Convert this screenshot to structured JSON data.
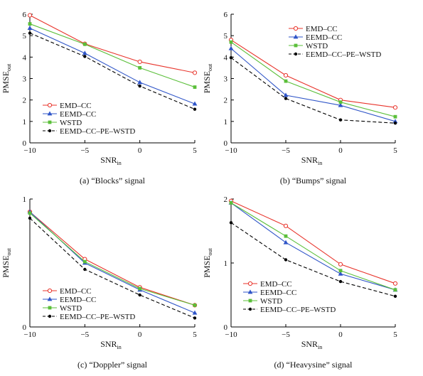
{
  "chart_data": [
    {
      "type": "line",
      "caption": "(a) “Blocks” signal",
      "xlabel": "SNR",
      "xlabel_sub": "in",
      "ylabel": "PMSE",
      "ylabel_sub": "out",
      "x": [
        -10,
        -5,
        0,
        5
      ],
      "xticks": [
        -10,
        -5,
        0,
        5
      ],
      "xtick_labels": [
        "−10",
        "−5",
        "0",
        "5"
      ],
      "ylim": [
        0,
        6
      ],
      "yticks": [
        0,
        1,
        2,
        3,
        4,
        5,
        6
      ],
      "ytick_labels": [
        "0",
        "1",
        "2",
        "3",
        "4",
        "5",
        "6"
      ],
      "legend_position": "bottom-left",
      "series": [
        {
          "name": "EMD–CC",
          "values": [
            5.95,
            4.62,
            3.78,
            3.27
          ]
        },
        {
          "name": "EEMD–CC",
          "values": [
            5.35,
            4.18,
            2.82,
            1.82
          ]
        },
        {
          "name": "WSTD",
          "values": [
            5.55,
            4.6,
            3.5,
            2.6
          ]
        },
        {
          "name": "EEMD–CC–PE–WSTD",
          "values": [
            5.12,
            4.03,
            2.65,
            1.57
          ]
        }
      ]
    },
    {
      "type": "line",
      "caption": "(b) “Bumps” signal",
      "xlabel": "SNR",
      "xlabel_sub": "in",
      "ylabel": "PMSE",
      "ylabel_sub": "out",
      "x": [
        -10,
        -5,
        0,
        5
      ],
      "xticks": [
        -10,
        -5,
        0,
        5
      ],
      "xtick_labels": [
        "−10",
        "−5",
        "0",
        "5"
      ],
      "ylim": [
        0,
        6
      ],
      "yticks": [
        0,
        1,
        2,
        3,
        4,
        5,
        6
      ],
      "ytick_labels": [
        "0",
        "1",
        "2",
        "3",
        "4",
        "5",
        "6"
      ],
      "legend_position": "top-right",
      "series": [
        {
          "name": "EMD–CC",
          "values": [
            4.8,
            3.15,
            2.0,
            1.65
          ]
        },
        {
          "name": "EEMD–CC",
          "values": [
            4.4,
            2.22,
            1.75,
            1.0
          ]
        },
        {
          "name": "WSTD",
          "values": [
            4.7,
            2.88,
            1.9,
            1.22
          ]
        },
        {
          "name": "EEMD–CC–PE–WSTD",
          "values": [
            3.97,
            2.07,
            1.07,
            0.92
          ]
        }
      ]
    },
    {
      "type": "line",
      "caption": "(c) “Doppler” signal",
      "xlabel": "SNR",
      "xlabel_sub": "in",
      "ylabel": "PMSE",
      "ylabel_sub": "out",
      "x": [
        -10,
        -5,
        0,
        5
      ],
      "xticks": [
        -10,
        -5,
        0,
        5
      ],
      "xtick_labels": [
        "−10",
        "−5",
        "0",
        "5"
      ],
      "ylim": [
        0,
        1
      ],
      "yticks": [
        0,
        1
      ],
      "ytick_labels": [
        "0",
        "1"
      ],
      "legend_position": "bottom-left",
      "series": [
        {
          "name": "EMD–CC",
          "values": [
            0.9,
            0.53,
            0.31,
            0.17
          ]
        },
        {
          "name": "EEMD–CC",
          "values": [
            0.9,
            0.5,
            0.29,
            0.11
          ]
        },
        {
          "name": "WSTD",
          "values": [
            0.89,
            0.51,
            0.3,
            0.17
          ]
        },
        {
          "name": "EEMD–CC–PE–WSTD",
          "values": [
            0.85,
            0.45,
            0.25,
            0.07
          ]
        }
      ]
    },
    {
      "type": "line",
      "caption": "(d) “Heavysine” signal",
      "xlabel": "SNR",
      "xlabel_sub": "in",
      "ylabel": "PMSE",
      "ylabel_sub": "out",
      "x": [
        -10,
        -5,
        0,
        5
      ],
      "xticks": [
        -10,
        -5,
        0,
        5
      ],
      "xtick_labels": [
        "−10",
        "−5",
        "0",
        "5"
      ],
      "ylim": [
        0,
        2
      ],
      "yticks": [
        0,
        1,
        2
      ],
      "ytick_labels": [
        "0",
        "1",
        "2"
      ],
      "legend_position": "bottom-left",
      "series": [
        {
          "name": "EMD–CC",
          "values": [
            1.97,
            1.58,
            0.98,
            0.68
          ]
        },
        {
          "name": "EEMD–CC",
          "values": [
            1.94,
            1.32,
            0.83,
            0.58
          ]
        },
        {
          "name": "WSTD",
          "values": [
            1.94,
            1.42,
            0.88,
            0.58
          ]
        },
        {
          "name": "EEMD–CC–PE–WSTD",
          "values": [
            1.63,
            1.05,
            0.71,
            0.48
          ]
        }
      ]
    }
  ],
  "series_styles": [
    {
      "color": "#e8332a",
      "marker": "circle-open",
      "dash": "solid"
    },
    {
      "color": "#2f55c8",
      "marker": "triangle-filled",
      "dash": "solid"
    },
    {
      "color": "#5bbf3a",
      "marker": "square-filled",
      "dash": "solid"
    },
    {
      "color": "#000000",
      "marker": "dot-filled",
      "dash": "dashed"
    }
  ]
}
